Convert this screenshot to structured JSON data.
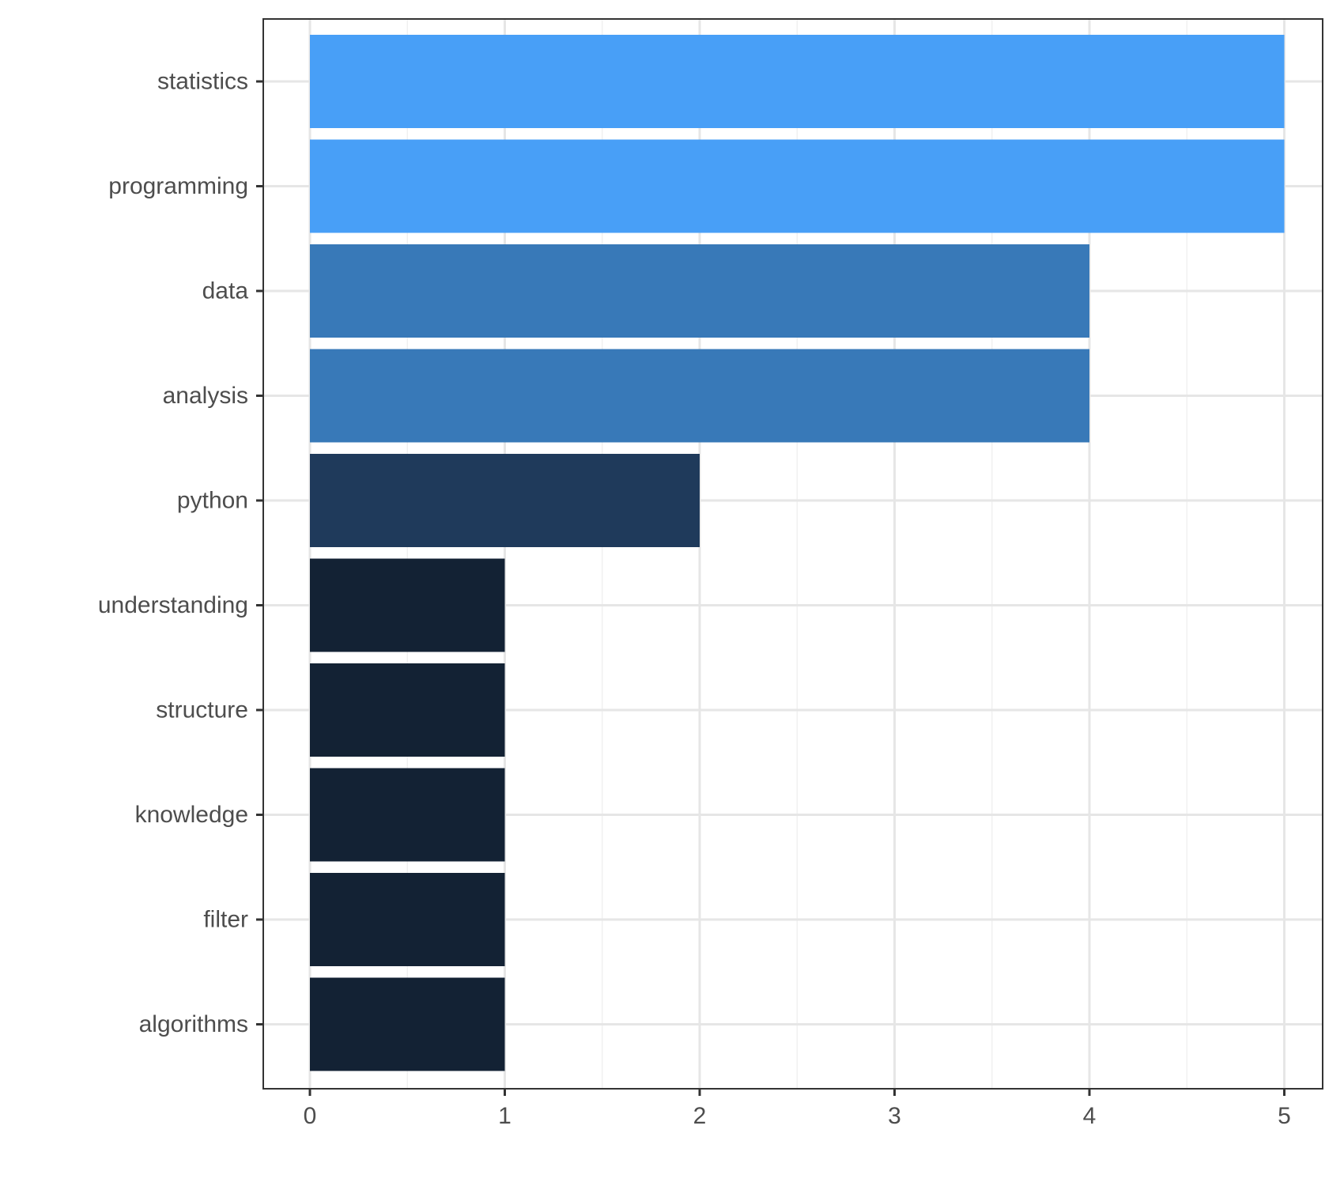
{
  "chart_data": {
    "type": "bar",
    "orientation": "horizontal",
    "title": "",
    "xlabel": "",
    "ylabel": "",
    "categories": [
      "statistics",
      "programming",
      "data",
      "analysis",
      "python",
      "understanding",
      "structure",
      "knowledge",
      "filter",
      "algorithms"
    ],
    "values": [
      5,
      5,
      4,
      4,
      2,
      1,
      1,
      1,
      1,
      1
    ],
    "colors": [
      "#489ff7",
      "#489ff7",
      "#3879b8",
      "#1f3a5b",
      "#132234"
    ],
    "xlim": [
      0,
      5
    ],
    "x_ticks": [
      "0",
      "1",
      "2",
      "3",
      "4",
      "5"
    ],
    "grid": true,
    "legend": "none"
  }
}
